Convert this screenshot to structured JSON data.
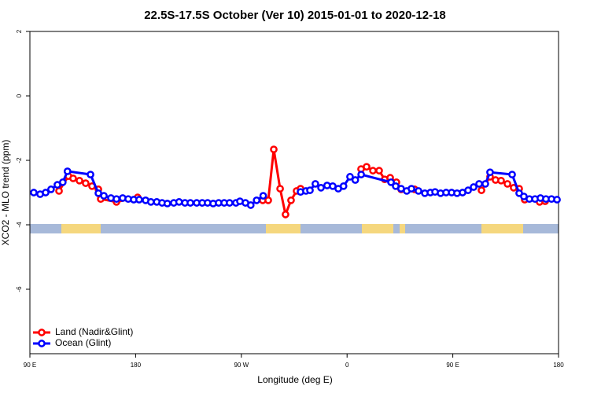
{
  "chart_data": {
    "type": "line",
    "title": "22.5S-17.5S October (Ver 10)   2015-01-01 to 2020-12-18",
    "xlabel": "Longitude (deg E)",
    "ylabel": "XCO2 - MLO trend (ppm)",
    "xlim": [
      90,
      540
    ],
    "xticks": [
      {
        "value": 90,
        "label": "90 E"
      },
      180,
      {
        "value": 270,
        "label": "90 W"
      },
      {
        "value": 360,
        "label": "0"
      },
      {
        "value": 450,
        "label": "90 E"
      },
      {
        "value": 540,
        "label": "180"
      }
    ],
    "ylim": [
      -8,
      2
    ],
    "yticks": [
      2,
      0,
      -2,
      -4,
      -6
    ],
    "legend": "bottom-left",
    "series": [
      {
        "name": "Land (Nadir&Glint)",
        "color": "#ff0000",
        "x": [
          114.8,
          122.8,
          126.8,
          132.2,
          137.5,
          142.9,
          148.3,
          150.3,
          163.7,
          181.7,
          null,
          288.2,
          292.9,
          297.6,
          303,
          307.6,
          312.3,
          317,
          320.4,
          null,
          371.9,
          376.6,
          382,
          387.3,
          392,
          396.7,
          402,
          406,
          null,
          417.5,
          null,
          474.4,
          481.7,
          486.4,
          491.1,
          496.5,
          501.8,
          506.5,
          511.2,
          null,
          523.9,
          528.6
        ],
        "values": [
          -2.95,
          -2.49,
          -2.56,
          -2.63,
          -2.71,
          -2.8,
          -2.9,
          -3.2,
          -3.29,
          -3.15,
          null,
          -3.24,
          -3.24,
          -1.66,
          -2.88,
          -3.68,
          -3.24,
          -2.95,
          -2.88,
          null,
          -2.27,
          -2.2,
          -2.32,
          -2.32,
          -2.59,
          -2.54,
          -2.68,
          -2.9,
          null,
          -2.9,
          null,
          -2.93,
          -2.51,
          -2.61,
          -2.63,
          -2.73,
          -2.85,
          -2.88,
          -3.22,
          null,
          -3.29,
          -3.27
        ]
      },
      {
        "name": "Ocean (Glint)",
        "color": "#0000ff",
        "x": [
          93.3,
          98.7,
          103.4,
          108,
          113.4,
          118,
          122,
          141.6,
          148.3,
          153,
          159,
          163.7,
          169,
          173.7,
          178.4,
          183,
          188.5,
          193,
          198,
          202.5,
          207,
          212.5,
          217,
          222,
          226.6,
          232,
          236.7,
          241.3,
          246,
          250.7,
          255.4,
          260,
          265.4,
          268.8,
          273.5,
          278,
          283,
          288.6,
          null,
          320.4,
          325,
          328.4,
          333,
          337.8,
          343,
          347.8,
          352.5,
          357,
          362.5,
          367,
          372,
          397.4,
          401.4,
          406,
          410.8,
          414.8,
          420.8,
          426.2,
          430.9,
          434.9,
          439.6,
          444.3,
          449,
          453.6,
          458.3,
          463,
          467.7,
          472.4,
          477.7,
          481.7,
          500.5,
          506.5,
          510.5,
          515.2,
          520,
          524.6,
          529.3,
          534,
          538.7
        ],
        "values": [
          -3,
          -3.05,
          -3,
          -2.9,
          -2.76,
          -2.68,
          -2.34,
          -2.44,
          -3.02,
          -3.1,
          -3.17,
          -3.2,
          -3.17,
          -3.2,
          -3.22,
          -3.22,
          -3.24,
          -3.29,
          -3.29,
          -3.32,
          -3.34,
          -3.32,
          -3.29,
          -3.32,
          -3.32,
          -3.32,
          -3.32,
          -3.32,
          -3.34,
          -3.32,
          -3.32,
          -3.32,
          -3.32,
          -3.27,
          -3.32,
          -3.39,
          -3.24,
          -3.1,
          null,
          -2.98,
          -2.95,
          -2.93,
          -2.73,
          -2.85,
          -2.78,
          -2.8,
          -2.88,
          -2.8,
          -2.51,
          -2.61,
          -2.44,
          -2.68,
          -2.8,
          -2.88,
          -2.95,
          -2.88,
          -2.95,
          -3.02,
          -3,
          -2.98,
          -3.02,
          -3,
          -3,
          -3.02,
          -3,
          -2.93,
          -2.83,
          -2.73,
          -2.73,
          -2.37,
          -2.44,
          -3.02,
          -3.12,
          -3.2,
          -3.2,
          -3.17,
          -3.2,
          -3.2,
          -3.22
        ]
      }
    ]
  }
}
